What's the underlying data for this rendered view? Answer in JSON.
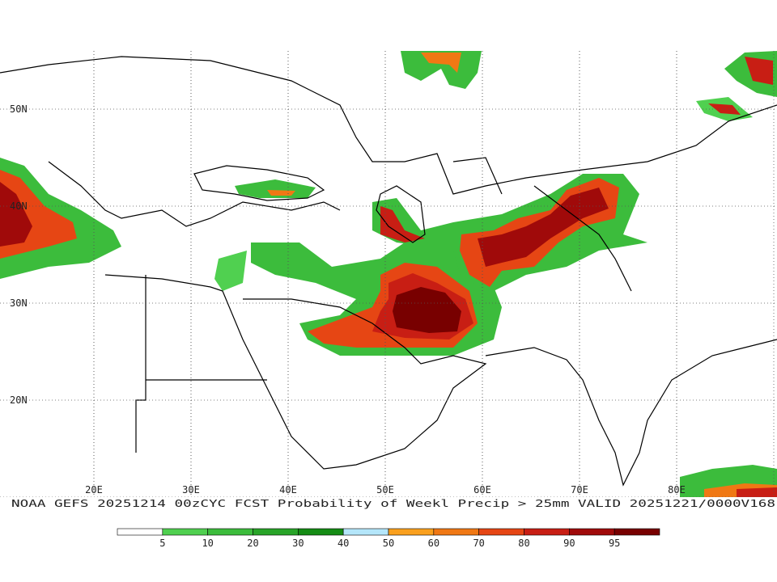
{
  "map": {
    "lat_labels": [
      "50N",
      "40N",
      "30N",
      "20N"
    ],
    "lon_labels": [
      "20E",
      "30E",
      "40E",
      "50E",
      "60E",
      "70E",
      "80E"
    ],
    "caption": "NOAA GEFS 20251214 00zCYC FCST Probability of Weekl Precip > 25mm  VALID 20251221/0000V168"
  },
  "colorbar": {
    "labels": [
      5,
      10,
      20,
      30,
      40,
      50,
      60,
      70,
      80,
      90,
      95
    ],
    "colors": [
      "#ffffff",
      "#50d050",
      "#3cbc3c",
      "#28a428",
      "#148c14",
      "#b4e6fa",
      "#faa01e",
      "#f07814",
      "#e64614",
      "#c81e14",
      "#a00a0a",
      "#780000"
    ]
  }
}
